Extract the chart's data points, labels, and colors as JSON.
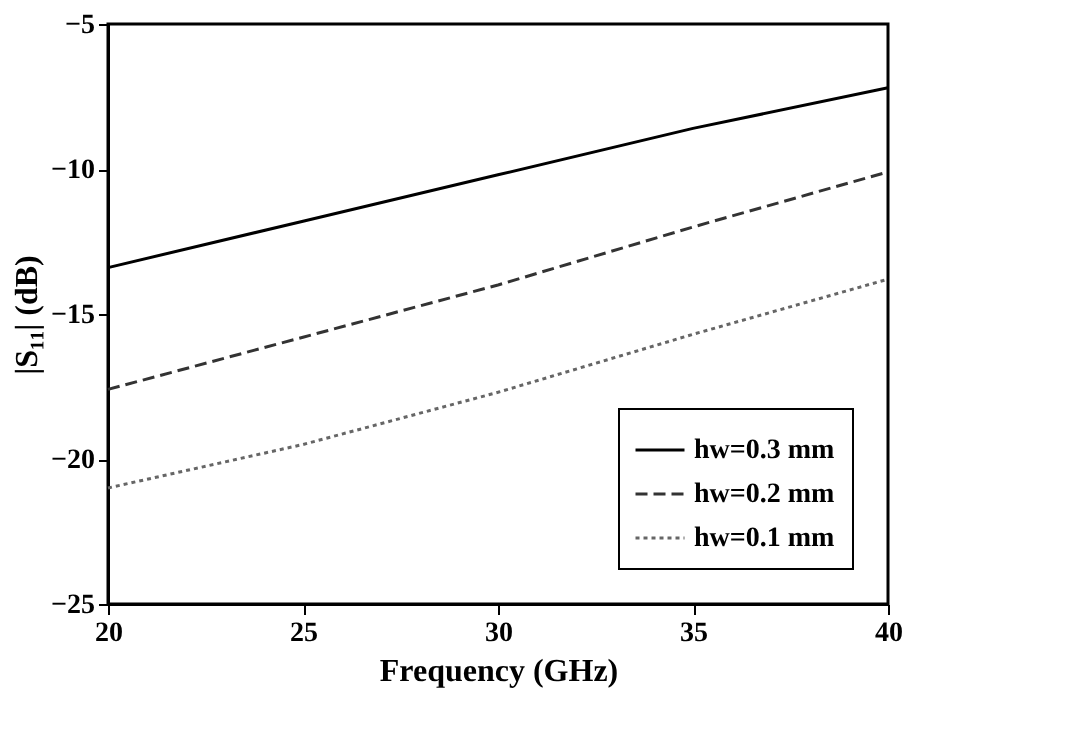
{
  "chart_data": {
    "type": "line",
    "xlabel": "Frequency (GHz)",
    "ylabel": "|S₁₁| (dB)",
    "x": [
      20,
      25,
      30,
      35,
      40
    ],
    "series": [
      {
        "name": "hw=0.3 mm",
        "color": "#000000",
        "line_style": "solid",
        "values": [
          -13.4,
          -11.8,
          -10.2,
          -8.6,
          -7.2
        ]
      },
      {
        "name": "hw=0.2 mm",
        "color": "#333333",
        "line_style": "dashed",
        "values": [
          -17.6,
          -15.8,
          -14.0,
          -12.0,
          -10.1
        ]
      },
      {
        "name": "hw=0.1 mm",
        "color": "#666666",
        "line_style": "dotted",
        "values": [
          -21.0,
          -19.5,
          -17.7,
          -15.7,
          -13.8
        ]
      }
    ],
    "xlim": [
      20,
      40
    ],
    "xticks": [
      20,
      25,
      30,
      35,
      40
    ],
    "ylim": [
      -25,
      -5
    ],
    "yticks": [
      -25,
      -20,
      -15,
      -10,
      -5
    ],
    "grid": false,
    "legend": "bottom right",
    "marker": "none"
  }
}
